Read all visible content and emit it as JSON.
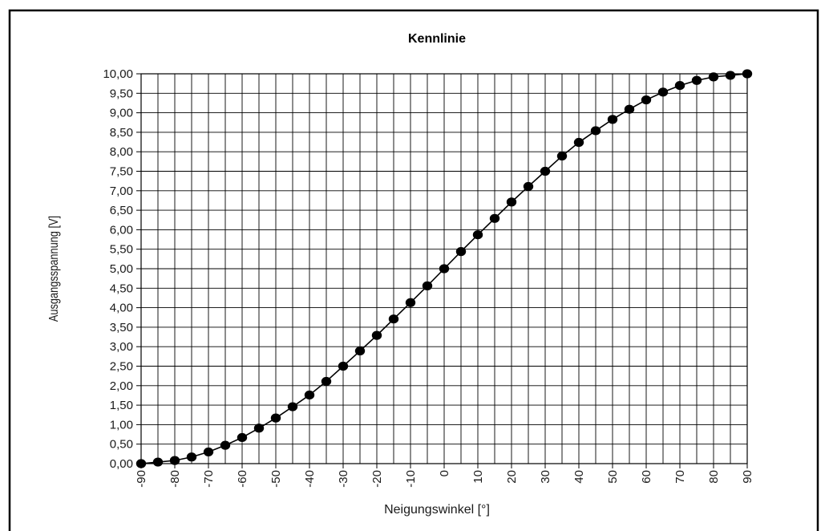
{
  "chart_data": {
    "type": "line",
    "title": "Kennlinie",
    "xlabel": "Neigungswinkel [°]",
    "ylabel": "Ausgangsspannung [V]",
    "xlim": [
      -90,
      90
    ],
    "ylim": [
      0,
      10
    ],
    "x_tick_labels": [
      "-90",
      "-80",
      "-70",
      "-60",
      "-50",
      "-40",
      "-30",
      "-20",
      "-10",
      "0",
      "10",
      "20",
      "30",
      "40",
      "50",
      "60",
      "70",
      "80",
      "90"
    ],
    "y_tick_labels": [
      "0,00",
      "0,50",
      "1,00",
      "1,50",
      "2,00",
      "2,50",
      "3,00",
      "3,50",
      "4,00",
      "4,50",
      "5,00",
      "5,50",
      "6,00",
      "6,50",
      "7,00",
      "7,50",
      "8,00",
      "8,50",
      "9,00",
      "9,50",
      "10,00"
    ],
    "x_tick_values": [
      -90,
      -80,
      -70,
      -60,
      -50,
      -40,
      -30,
      -20,
      -10,
      0,
      10,
      20,
      30,
      40,
      50,
      60,
      70,
      80,
      90
    ],
    "y_tick_values": [
      0,
      0.5,
      1,
      1.5,
      2,
      2.5,
      3,
      3.5,
      4,
      4.5,
      5,
      5.5,
      6,
      6.5,
      7,
      7.5,
      8,
      8.5,
      9,
      9.5,
      10
    ],
    "x_grid_step": 5,
    "y_grid_step": 0.5,
    "grid": true,
    "legend": "none",
    "series": [
      {
        "marker": "circle",
        "color": "#000000",
        "x": [
          -90,
          -85,
          -80,
          -75,
          -70,
          -65,
          -60,
          -55,
          -50,
          -45,
          -40,
          -35,
          -30,
          -25,
          -20,
          -15,
          -10,
          -5,
          0,
          5,
          10,
          15,
          20,
          25,
          30,
          35,
          40,
          45,
          50,
          55,
          60,
          65,
          70,
          75,
          80,
          85,
          90
        ],
        "y": [
          0.0,
          0.04,
          0.08,
          0.17,
          0.3,
          0.47,
          0.67,
          0.91,
          1.17,
          1.46,
          1.76,
          2.11,
          2.5,
          2.89,
          3.29,
          3.71,
          4.13,
          4.56,
          5.0,
          5.44,
          5.87,
          6.29,
          6.71,
          7.11,
          7.5,
          7.89,
          8.24,
          8.54,
          8.83,
          9.09,
          9.33,
          9.53,
          9.7,
          9.83,
          9.92,
          9.96,
          10.0
        ]
      }
    ]
  }
}
